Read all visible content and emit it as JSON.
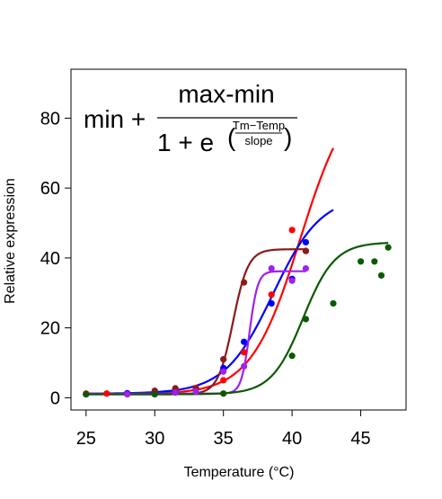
{
  "chart_data": {
    "type": "scatter",
    "xlabel": "Temperature (°C)",
    "ylabel": "Relative expression",
    "xlim": [
      23.9,
      48.3
    ],
    "ylim": [
      -3.5,
      94
    ],
    "xticks": [
      25,
      30,
      35,
      40,
      45
    ],
    "yticks": [
      0,
      20,
      40,
      60,
      80
    ],
    "grid": false,
    "formula": {
      "min_plus": "min +",
      "numerator": "max-min",
      "one_plus_e": "1 + e",
      "exp_numerator": "Tm−Temp",
      "exp_denominator": "slope"
    },
    "series": [
      {
        "color": "#ff0000",
        "curve": {
          "min": 1.0,
          "max": 90,
          "tm": 40.6,
          "slope": 1.8,
          "x_range": [
            25,
            43
          ]
        },
        "points": [
          [
            25,
            1.2
          ],
          [
            26.5,
            1.2
          ],
          [
            28,
            1.2
          ],
          [
            30,
            1.5
          ],
          [
            31.5,
            2.0
          ],
          [
            33,
            2.8
          ],
          [
            35,
            5.0
          ],
          [
            36.5,
            13
          ],
          [
            38.5,
            29.5
          ],
          [
            40,
            48
          ],
          [
            41,
            42
          ]
        ]
      },
      {
        "color": "#0000ff",
        "curve": {
          "min": 1.2,
          "max": 58,
          "tm": 38.6,
          "slope": 1.75,
          "x_range": [
            25,
            43
          ]
        },
        "points": [
          [
            25,
            1.0
          ],
          [
            28,
            1.3
          ],
          [
            30,
            1.4
          ],
          [
            31.5,
            1.5
          ],
          [
            33,
            2.5
          ],
          [
            35,
            8.5
          ],
          [
            36.5,
            16
          ],
          [
            38.5,
            27
          ],
          [
            40,
            34
          ],
          [
            41,
            44.5
          ]
        ]
      },
      {
        "color": "#8b1a1a",
        "curve": {
          "min": 1.0,
          "max": 42.5,
          "tm": 35.7,
          "slope": 0.55,
          "x_range": [
            25,
            41
          ]
        },
        "points": [
          [
            25,
            1.0
          ],
          [
            28,
            1.0
          ],
          [
            30,
            2.0
          ],
          [
            31.5,
            2.7
          ],
          [
            33,
            2.5
          ],
          [
            35,
            11
          ],
          [
            36.5,
            33
          ],
          [
            41,
            42
          ]
        ]
      },
      {
        "color": "#a020f0",
        "curve": {
          "min": 1.2,
          "max": 36.2,
          "tm": 36.9,
          "slope": 0.3,
          "x_range": [
            25,
            41
          ]
        },
        "points": [
          [
            25,
            1.0
          ],
          [
            28,
            1.0
          ],
          [
            30,
            1.0
          ],
          [
            31.5,
            1.5
          ],
          [
            33,
            1.8
          ],
          [
            35,
            7.5
          ],
          [
            36.5,
            9
          ],
          [
            38.5,
            37
          ],
          [
            40,
            33.5
          ],
          [
            41,
            37
          ]
        ]
      },
      {
        "color": "#0b5a00",
        "curve": {
          "min": 1.0,
          "max": 44.5,
          "tm": 40.8,
          "slope": 1.15,
          "x_range": [
            25,
            47
          ]
        },
        "points": [
          [
            25,
            1.0
          ],
          [
            30,
            1.0
          ],
          [
            35,
            1.2
          ],
          [
            40,
            12
          ],
          [
            41,
            22.5
          ],
          [
            43,
            27
          ],
          [
            45,
            39
          ],
          [
            46,
            39
          ],
          [
            46.5,
            35
          ],
          [
            47,
            43
          ]
        ]
      }
    ]
  }
}
